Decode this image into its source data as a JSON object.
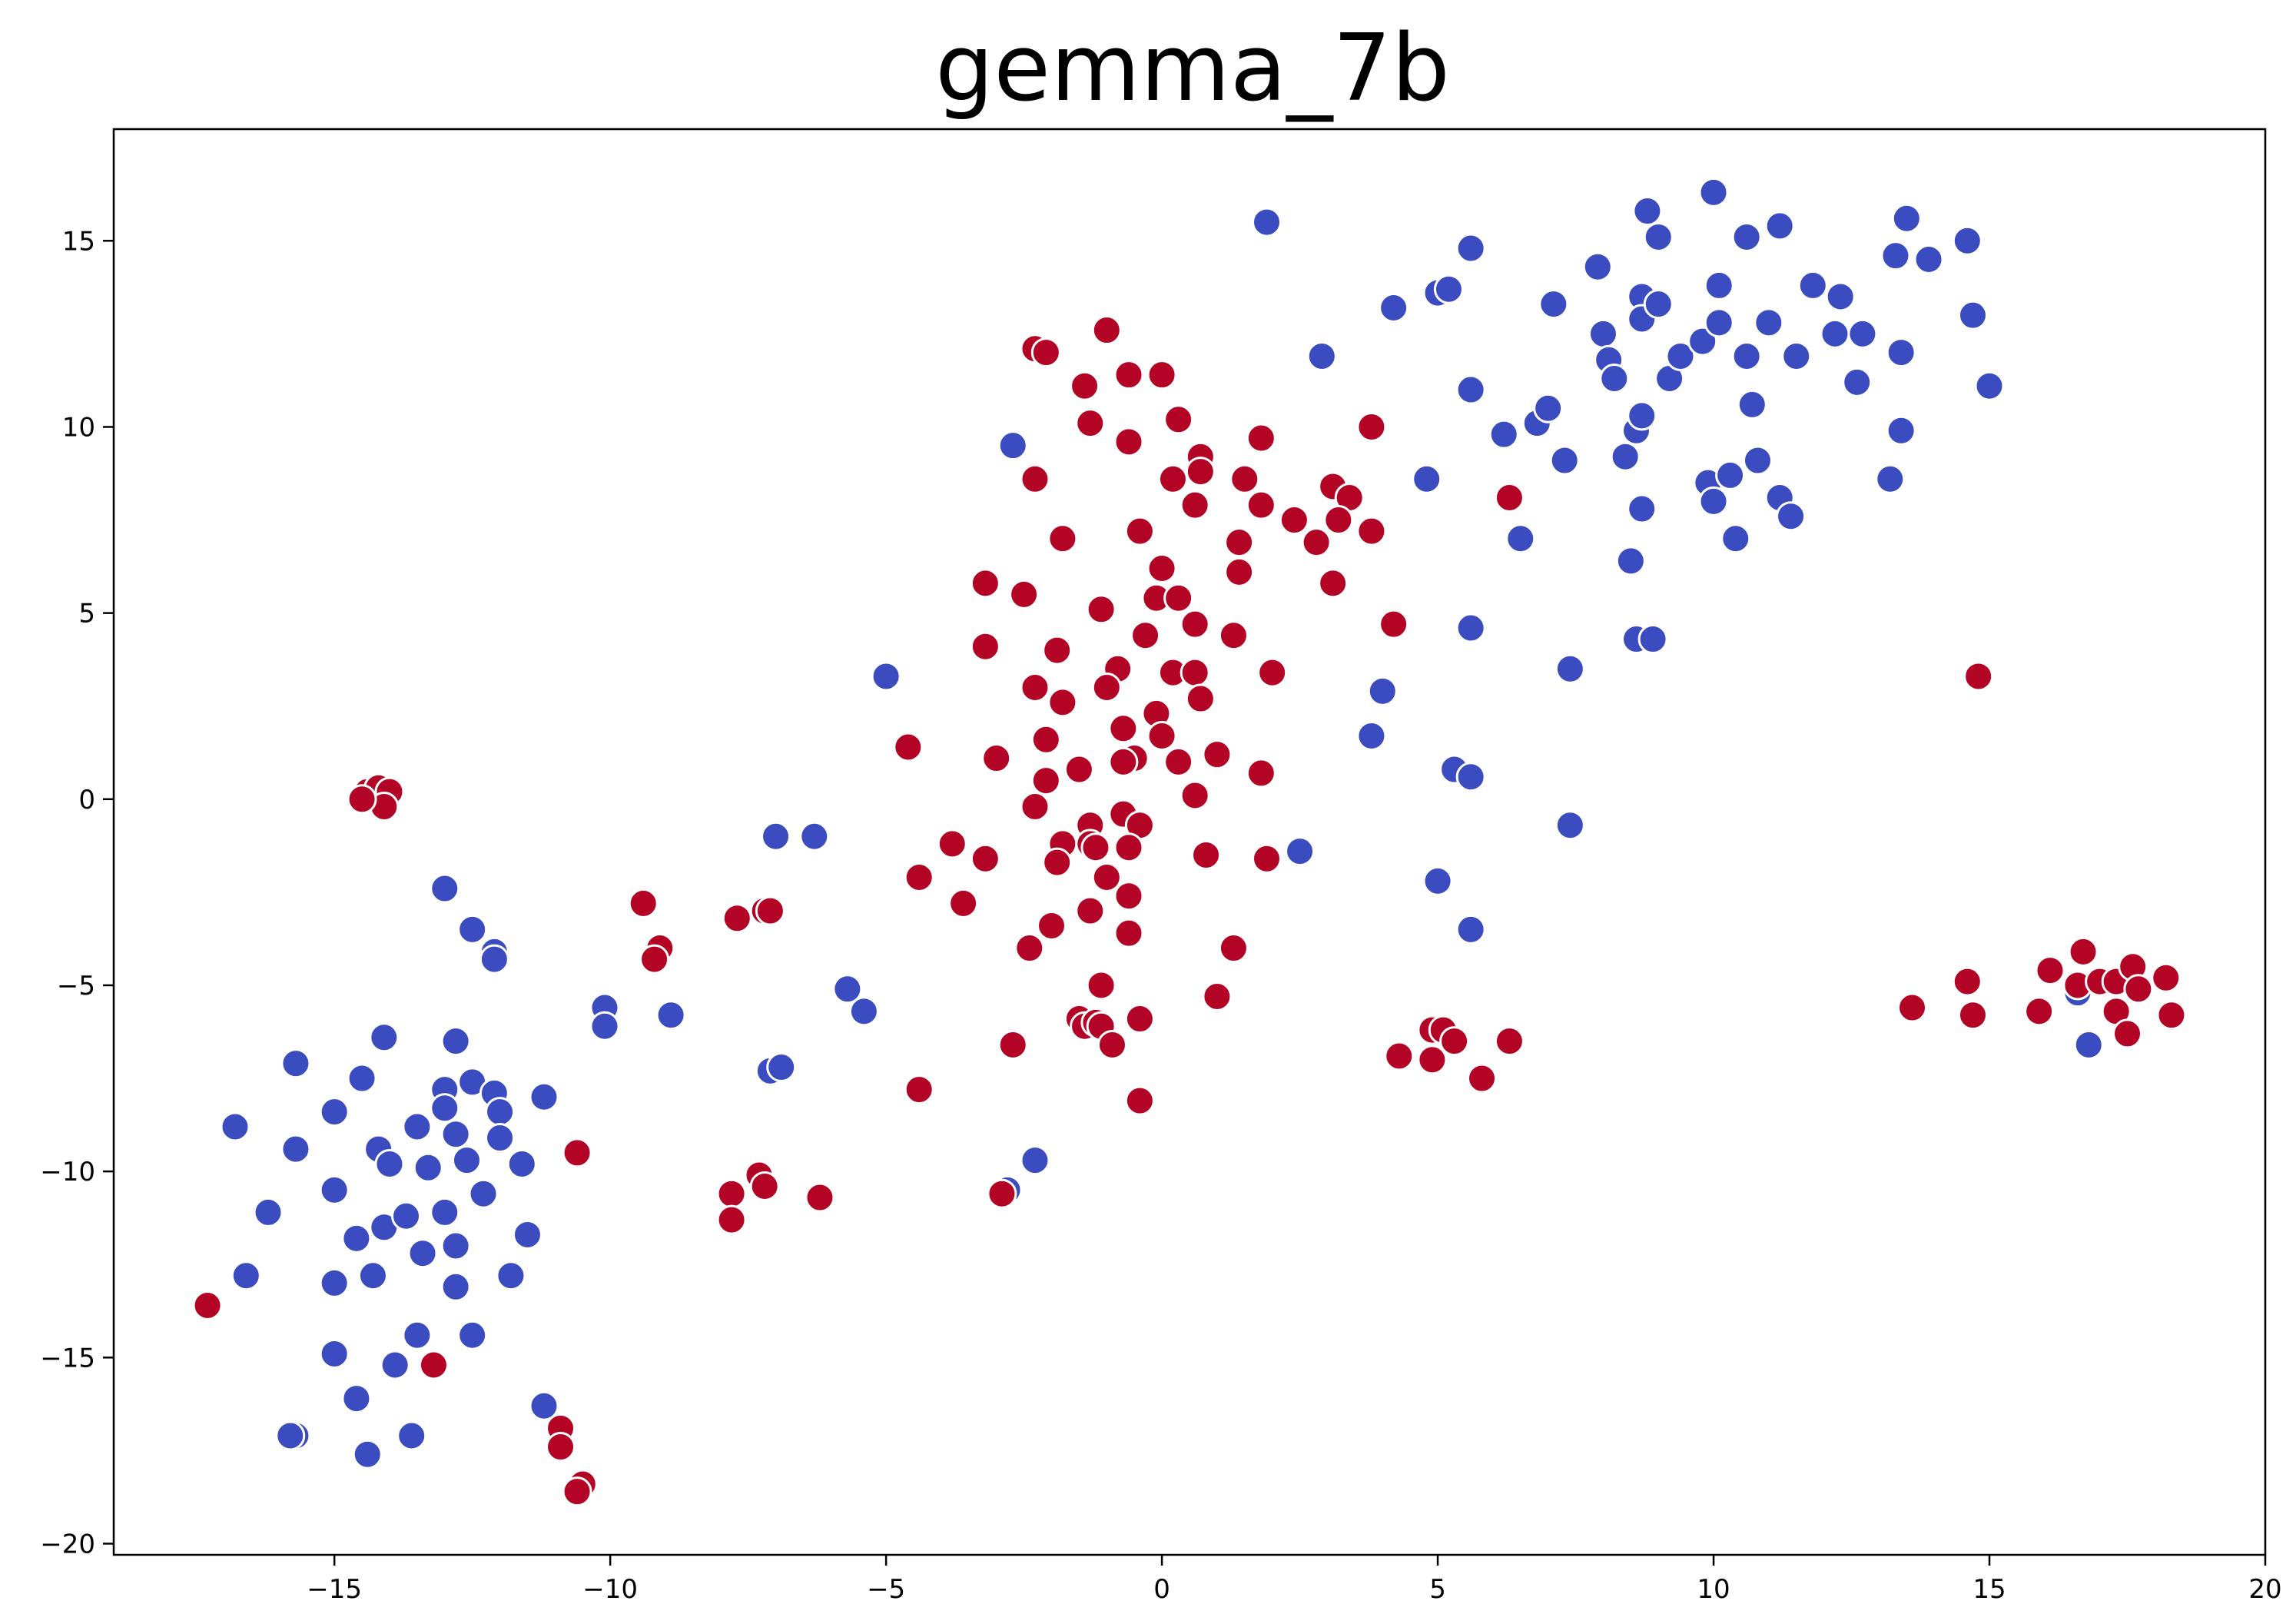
{
  "chart_data": {
    "type": "scatter",
    "title": "gemma_7b",
    "xlabel": "",
    "ylabel": "",
    "xlim": [
      -19.0,
      20.0
    ],
    "ylim": [
      -20.3,
      18.0
    ],
    "xticks": [
      -15,
      -10,
      -5,
      0,
      5,
      10,
      15,
      20
    ],
    "yticks": [
      -20,
      -15,
      -10,
      -5,
      0,
      5,
      10,
      15
    ],
    "xtick_labels": [
      "−15",
      "−10",
      "−5",
      "0",
      "5",
      "10",
      "15",
      "20"
    ],
    "ytick_labels": [
      "−20",
      "−15",
      "−10",
      "−5",
      "0",
      "5",
      "10",
      "15"
    ],
    "grid": false,
    "legend": "none",
    "colors": {
      "blue": "#3b4cc0",
      "red": "#b40426"
    },
    "series": [
      {
        "color": "blue",
        "points": [
          [
            1.9,
            15.5
          ],
          [
            5.6,
            14.8
          ],
          [
            5.0,
            13.6
          ],
          [
            5.2,
            13.7
          ],
          [
            4.2,
            13.2
          ],
          [
            2.9,
            11.9
          ],
          [
            5.6,
            11.0
          ],
          [
            6.2,
            9.8
          ],
          [
            4.8,
            8.6
          ],
          [
            6.5,
            7.0
          ],
          [
            5.6,
            4.6
          ],
          [
            4.0,
            2.9
          ],
          [
            3.8,
            1.7
          ],
          [
            5.3,
            0.8
          ],
          [
            5.6,
            0.6
          ],
          [
            2.5,
            -1.4
          ],
          [
            7.4,
            -0.7
          ],
          [
            5.0,
            -2.2
          ],
          [
            5.6,
            -3.5
          ],
          [
            7.4,
            3.5
          ],
          [
            6.8,
            10.1
          ],
          [
            7.0,
            10.5
          ],
          [
            7.3,
            9.1
          ],
          [
            7.1,
            13.3
          ],
          [
            8.0,
            12.5
          ],
          [
            7.9,
            14.3
          ],
          [
            8.1,
            11.8
          ],
          [
            8.2,
            11.3
          ],
          [
            8.4,
            9.2
          ],
          [
            8.6,
            9.9
          ],
          [
            8.7,
            10.3
          ],
          [
            8.7,
            13.5
          ],
          [
            8.7,
            12.9
          ],
          [
            8.8,
            15.8
          ],
          [
            9.0,
            13.3
          ],
          [
            9.0,
            15.1
          ],
          [
            9.2,
            11.3
          ],
          [
            9.4,
            11.9
          ],
          [
            9.8,
            12.3
          ],
          [
            10.0,
            16.3
          ],
          [
            10.1,
            12.8
          ],
          [
            10.1,
            13.8
          ],
          [
            9.9,
            8.5
          ],
          [
            10.0,
            8.0
          ],
          [
            10.3,
            8.7
          ],
          [
            10.4,
            7.0
          ],
          [
            10.6,
            15.1
          ],
          [
            10.6,
            11.9
          ],
          [
            10.7,
            10.6
          ],
          [
            10.8,
            9.1
          ],
          [
            11.0,
            12.8
          ],
          [
            11.2,
            15.4
          ],
          [
            11.2,
            8.1
          ],
          [
            11.4,
            7.6
          ],
          [
            11.5,
            11.9
          ],
          [
            11.8,
            13.8
          ],
          [
            12.2,
            12.5
          ],
          [
            12.3,
            13.5
          ],
          [
            12.6,
            11.2
          ],
          [
            12.7,
            12.5
          ],
          [
            13.2,
            8.6
          ],
          [
            13.3,
            14.6
          ],
          [
            13.4,
            12.0
          ],
          [
            13.4,
            9.9
          ],
          [
            13.5,
            15.6
          ],
          [
            13.9,
            14.5
          ],
          [
            14.6,
            15.0
          ],
          [
            14.7,
            13.0
          ],
          [
            15.0,
            11.1
          ],
          [
            8.7,
            7.8
          ],
          [
            8.6,
            4.3
          ],
          [
            8.9,
            4.3
          ],
          [
            8.5,
            6.4
          ],
          [
            -2.7,
            9.5
          ],
          [
            -5.0,
            3.3
          ],
          [
            -6.3,
            -1.0
          ],
          [
            -7.0,
            -1.0
          ],
          [
            -5.7,
            -5.1
          ],
          [
            -5.4,
            -5.7
          ],
          [
            -7.1,
            -7.3
          ],
          [
            -6.9,
            -7.2
          ],
          [
            -2.8,
            -10.5
          ],
          [
            -2.3,
            -9.7
          ],
          [
            -10.1,
            -5.6
          ],
          [
            -10.1,
            -6.1
          ],
          [
            -8.9,
            -5.8
          ],
          [
            -13.0,
            -2.4
          ],
          [
            -12.5,
            -3.5
          ],
          [
            -12.1,
            -4.1
          ],
          [
            -12.1,
            -4.3
          ],
          [
            -14.1,
            -6.4
          ],
          [
            -14.5,
            -7.5
          ],
          [
            -12.8,
            -6.5
          ],
          [
            -12.5,
            -7.6
          ],
          [
            -12.1,
            -7.9
          ],
          [
            -11.2,
            -8.0
          ],
          [
            -12.0,
            -8.4
          ],
          [
            -12.0,
            -9.1
          ],
          [
            -13.0,
            -7.8
          ],
          [
            -13.0,
            -8.3
          ],
          [
            -13.5,
            -8.8
          ],
          [
            -12.8,
            -9.0
          ],
          [
            -14.2,
            -9.4
          ],
          [
            -14.0,
            -9.8
          ],
          [
            -13.3,
            -9.9
          ],
          [
            -12.6,
            -9.7
          ],
          [
            -12.3,
            -10.6
          ],
          [
            -11.6,
            -9.8
          ],
          [
            -15.0,
            -8.4
          ],
          [
            -15.7,
            -7.1
          ],
          [
            -15.7,
            -9.4
          ],
          [
            -16.8,
            -8.8
          ],
          [
            -15.0,
            -10.5
          ],
          [
            -14.1,
            -11.5
          ],
          [
            -13.7,
            -11.2
          ],
          [
            -13.0,
            -11.1
          ],
          [
            -12.8,
            -12.0
          ],
          [
            -13.4,
            -12.2
          ],
          [
            -14.6,
            -11.8
          ],
          [
            -16.2,
            -11.1
          ],
          [
            -11.5,
            -11.7
          ],
          [
            -11.8,
            -12.8
          ],
          [
            -12.8,
            -13.1
          ],
          [
            -14.3,
            -12.8
          ],
          [
            -15.0,
            -13.0
          ],
          [
            -16.6,
            -12.8
          ],
          [
            -13.5,
            -14.4
          ],
          [
            -12.5,
            -14.4
          ],
          [
            -15.0,
            -14.9
          ],
          [
            -13.9,
            -15.2
          ],
          [
            -14.6,
            -16.1
          ],
          [
            -11.2,
            -16.3
          ],
          [
            -15.7,
            -17.1
          ],
          [
            -15.8,
            -17.1
          ],
          [
            -13.6,
            -17.1
          ],
          [
            -14.4,
            -17.6
          ],
          [
            16.8,
            -6.6
          ],
          [
            16.6,
            -5.2
          ]
        ]
      },
      {
        "color": "red",
        "points": [
          [
            -1.0,
            12.6
          ],
          [
            -2.3,
            12.1
          ],
          [
            -2.1,
            12.0
          ],
          [
            -0.6,
            11.4
          ],
          [
            0.0,
            11.4
          ],
          [
            -1.4,
            11.1
          ],
          [
            -1.3,
            10.1
          ],
          [
            0.3,
            10.2
          ],
          [
            -0.6,
            9.6
          ],
          [
            1.8,
            9.7
          ],
          [
            3.8,
            10.0
          ],
          [
            -2.3,
            8.6
          ],
          [
            0.2,
            8.6
          ],
          [
            0.7,
            9.2
          ],
          [
            0.7,
            8.8
          ],
          [
            1.5,
            8.6
          ],
          [
            0.6,
            7.9
          ],
          [
            1.8,
            7.9
          ],
          [
            2.4,
            7.5
          ],
          [
            3.1,
            8.4
          ],
          [
            3.4,
            8.1
          ],
          [
            6.3,
            8.1
          ],
          [
            3.2,
            7.5
          ],
          [
            2.8,
            6.9
          ],
          [
            3.8,
            7.2
          ],
          [
            -1.8,
            7.0
          ],
          [
            -0.4,
            7.2
          ],
          [
            1.4,
            6.9
          ],
          [
            0.0,
            6.2
          ],
          [
            1.4,
            6.1
          ],
          [
            -3.2,
            5.8
          ],
          [
            -2.5,
            5.5
          ],
          [
            -1.1,
            5.1
          ],
          [
            -0.1,
            5.4
          ],
          [
            0.3,
            5.4
          ],
          [
            0.6,
            4.7
          ],
          [
            3.1,
            5.8
          ],
          [
            4.2,
            4.7
          ],
          [
            -3.2,
            4.1
          ],
          [
            -1.9,
            4.0
          ],
          [
            -0.3,
            4.4
          ],
          [
            1.3,
            4.4
          ],
          [
            -0.8,
            3.5
          ],
          [
            0.2,
            3.4
          ],
          [
            0.6,
            3.4
          ],
          [
            2.0,
            3.4
          ],
          [
            -2.3,
            3.0
          ],
          [
            -1.8,
            2.6
          ],
          [
            -1.0,
            3.0
          ],
          [
            0.7,
            2.7
          ],
          [
            -0.1,
            2.3
          ],
          [
            -0.7,
            1.9
          ],
          [
            0.0,
            1.7
          ],
          [
            -4.6,
            1.4
          ],
          [
            -3.0,
            1.1
          ],
          [
            -2.1,
            1.6
          ],
          [
            -0.5,
            1.1
          ],
          [
            -0.7,
            1.0
          ],
          [
            0.3,
            1.0
          ],
          [
            1.0,
            1.2
          ],
          [
            1.8,
            0.7
          ],
          [
            -2.1,
            0.5
          ],
          [
            -1.5,
            0.8
          ],
          [
            0.6,
            0.1
          ],
          [
            -2.3,
            -0.2
          ],
          [
            -0.7,
            -0.4
          ],
          [
            -1.3,
            -0.7
          ],
          [
            -0.4,
            -0.7
          ],
          [
            -1.8,
            -1.2
          ],
          [
            -1.3,
            -1.2
          ],
          [
            -1.2,
            -1.3
          ],
          [
            -0.6,
            -1.3
          ],
          [
            0.8,
            -1.5
          ],
          [
            1.9,
            -1.6
          ],
          [
            -3.8,
            -1.2
          ],
          [
            -3.2,
            -1.6
          ],
          [
            -1.9,
            -1.7
          ],
          [
            -1.0,
            -2.1
          ],
          [
            -4.4,
            -2.1
          ],
          [
            -3.6,
            -2.8
          ],
          [
            -0.6,
            -2.6
          ],
          [
            -2.0,
            -3.4
          ],
          [
            -1.3,
            -3.0
          ],
          [
            -0.6,
            -3.6
          ],
          [
            1.3,
            -4.0
          ],
          [
            -2.4,
            -4.0
          ],
          [
            -1.1,
            -5.0
          ],
          [
            1.0,
            -5.3
          ],
          [
            -1.5,
            -5.9
          ],
          [
            -1.4,
            -6.1
          ],
          [
            -1.2,
            -6.0
          ],
          [
            -1.1,
            -6.1
          ],
          [
            -0.4,
            -5.9
          ],
          [
            -0.9,
            -6.6
          ],
          [
            -2.7,
            -6.6
          ],
          [
            -4.4,
            -7.8
          ],
          [
            -0.4,
            -8.1
          ],
          [
            -9.4,
            -2.8
          ],
          [
            -9.1,
            -4.0
          ],
          [
            -9.2,
            -4.3
          ],
          [
            -7.7,
            -3.2
          ],
          [
            -7.2,
            -3.0
          ],
          [
            -7.1,
            -3.0
          ],
          [
            -10.6,
            -9.5
          ],
          [
            -7.8,
            -10.6
          ],
          [
            -7.8,
            -11.3
          ],
          [
            -7.3,
            -10.1
          ],
          [
            -7.2,
            -10.4
          ],
          [
            -6.2,
            -10.7
          ],
          [
            -2.9,
            -10.6
          ],
          [
            -14.4,
            0.2
          ],
          [
            -14.2,
            0.3
          ],
          [
            -14.0,
            0.2
          ],
          [
            -14.1,
            -0.2
          ],
          [
            -14.5,
            0.0
          ],
          [
            -17.3,
            -13.6
          ],
          [
            -13.2,
            -15.2
          ],
          [
            -10.9,
            -16.9
          ],
          [
            -10.9,
            -17.4
          ],
          [
            -10.5,
            -18.4
          ],
          [
            -10.6,
            -18.6
          ],
          [
            4.3,
            -6.9
          ],
          [
            4.9,
            -7.0
          ],
          [
            4.9,
            -6.2
          ],
          [
            5.1,
            -6.2
          ],
          [
            5.3,
            -6.5
          ],
          [
            5.8,
            -7.5
          ],
          [
            6.3,
            -6.5
          ],
          [
            14.8,
            3.3
          ],
          [
            14.6,
            -4.9
          ],
          [
            14.7,
            -5.8
          ],
          [
            13.6,
            -5.6
          ],
          [
            15.9,
            -5.7
          ],
          [
            16.1,
            -4.6
          ],
          [
            16.6,
            -5.0
          ],
          [
            16.7,
            -4.1
          ],
          [
            17.0,
            -4.9
          ],
          [
            17.3,
            -4.9
          ],
          [
            17.3,
            -5.7
          ],
          [
            17.5,
            -6.3
          ],
          [
            17.6,
            -4.5
          ],
          [
            17.7,
            -5.1
          ],
          [
            18.2,
            -4.8
          ],
          [
            18.3,
            -5.8
          ]
        ]
      }
    ]
  }
}
